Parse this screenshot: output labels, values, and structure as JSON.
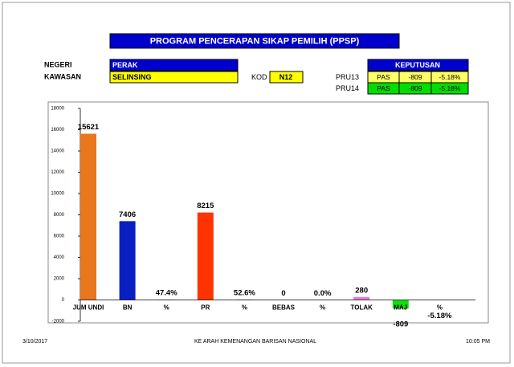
{
  "header": {
    "title": "PROGRAM PENCERAPAN SIKAP PEMILIH (PPSP)",
    "negeri_label": "NEGERI",
    "negeri": "PERAK",
    "kawasan_label": "KAWASAN",
    "kawasan": "SELINSING",
    "kod_label": "KOD",
    "kod": "N12"
  },
  "keputusan": {
    "title": "KEPUTUSAN",
    "rows": [
      [
        "PRU13",
        "PAS",
        "-809",
        "-5.18%"
      ],
      [
        "PRU14",
        "PAS",
        "-809",
        "-5.18%"
      ]
    ],
    "row_colors": [
      "#ffff66",
      "#00dd00"
    ]
  },
  "chart_data": {
    "type": "bar",
    "categories": [
      "JUM UNDI",
      "BN",
      "%",
      "PR",
      "%",
      "BEBAS",
      "%",
      "TOLAK",
      "MAJ",
      "%"
    ],
    "values": [
      15621,
      7406,
      47.4,
      8215,
      52.6,
      0,
      0.0,
      280,
      -809,
      -5.18
    ],
    "value_labels": [
      "15621",
      "7406",
      "47.4%",
      "8215",
      "52.6%",
      "0",
      "0.0%",
      "280",
      "-809",
      "-5.18%"
    ],
    "colors": [
      "#e8771e",
      "#0a1fbf",
      "#c0c0c0",
      "#ff3300",
      "#c0c0c0",
      "#c0c0c0",
      "#c0c0c0",
      "#ee77dd",
      "#11dd11",
      "#c0c0c0"
    ],
    "ylim": [
      -2000,
      18000
    ],
    "yticks": [
      -2000,
      0,
      2000,
      4000,
      6000,
      8000,
      10000,
      12000,
      14000,
      16000,
      18000
    ],
    "grid": false
  },
  "footer": {
    "date": "3/10/2017",
    "center": "KE ARAH KEMENANGAN BARISAN NASIONAL",
    "time": "10:05 PM"
  }
}
